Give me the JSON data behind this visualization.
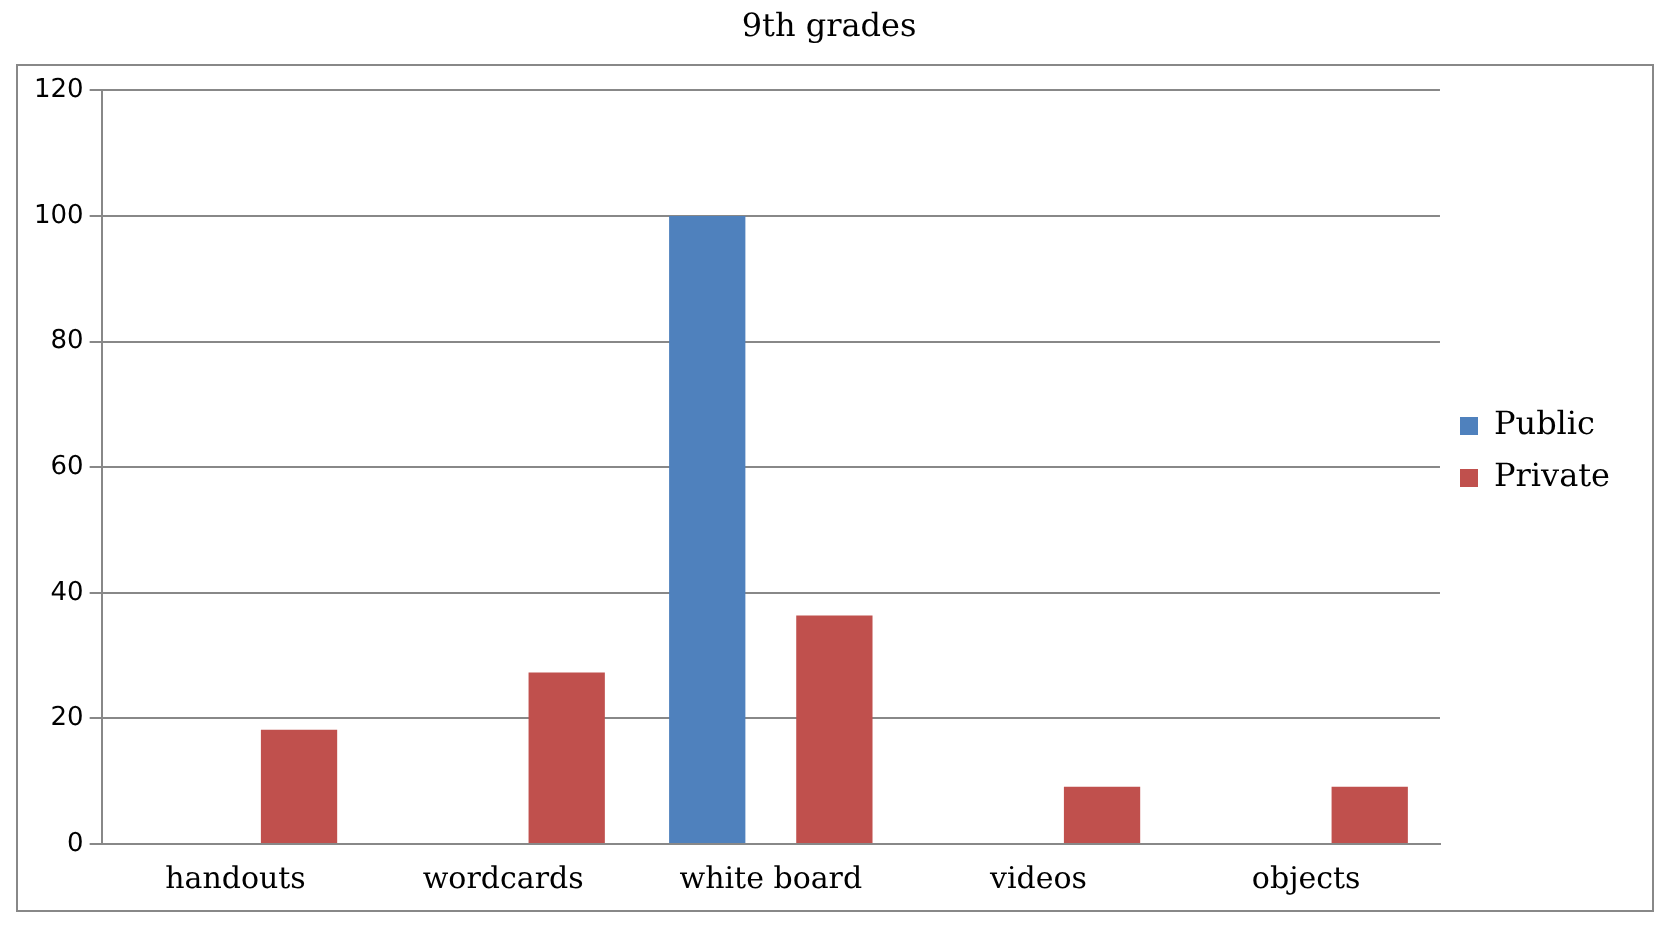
{
  "chart_data": {
    "type": "bar",
    "title": "9th grades",
    "categories": [
      "handouts",
      "wordcards",
      "white board",
      "videos",
      "objects"
    ],
    "series": [
      {
        "name": "Public",
        "color": "#4f81bd",
        "values": [
          0,
          0,
          100,
          0,
          0
        ]
      },
      {
        "name": "Private",
        "color": "#c0504d",
        "values": [
          18.2,
          27.3,
          36.4,
          9.1,
          9.1
        ]
      }
    ],
    "ylim": [
      0,
      120
    ],
    "yticks": [
      0,
      20,
      40,
      60,
      80,
      100,
      120
    ],
    "grid": "y",
    "legend": "right"
  }
}
